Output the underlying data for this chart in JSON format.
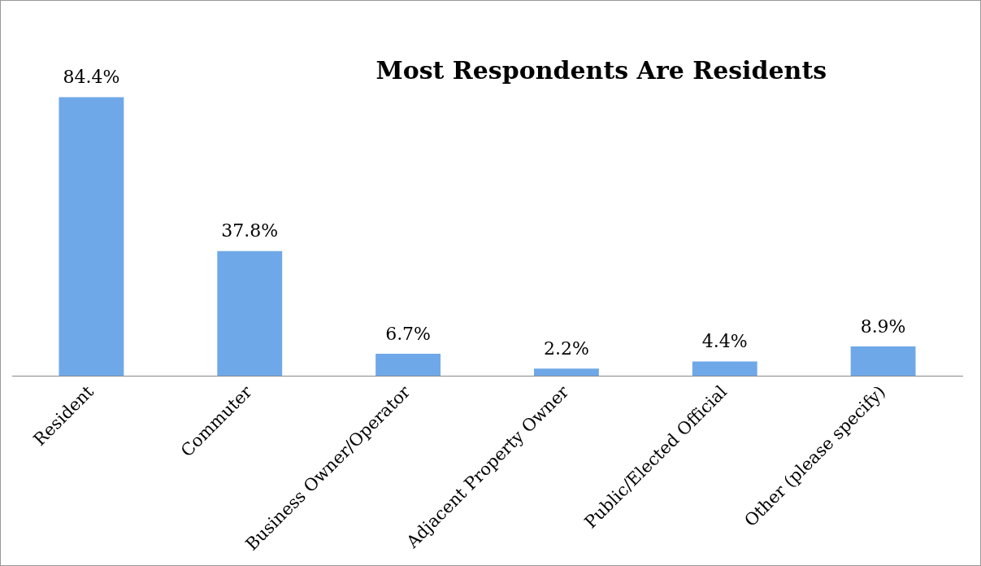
{
  "chart_data": {
    "type": "bar",
    "title": "Most Respondents Are Residents",
    "categories": [
      "Resident",
      "Commuter",
      "Business Owner/Operator",
      "Adjacent Property Owner",
      "Public/Elected Official",
      "Other (please specify)"
    ],
    "values": [
      84.4,
      37.8,
      6.7,
      2.2,
      4.4,
      8.9
    ],
    "value_labels": [
      "84.4%",
      "37.8%",
      "6.7%",
      "2.2%",
      "4.4%",
      "8.9%"
    ],
    "color": "#6fa8e8",
    "grid": false,
    "legend": false
  }
}
